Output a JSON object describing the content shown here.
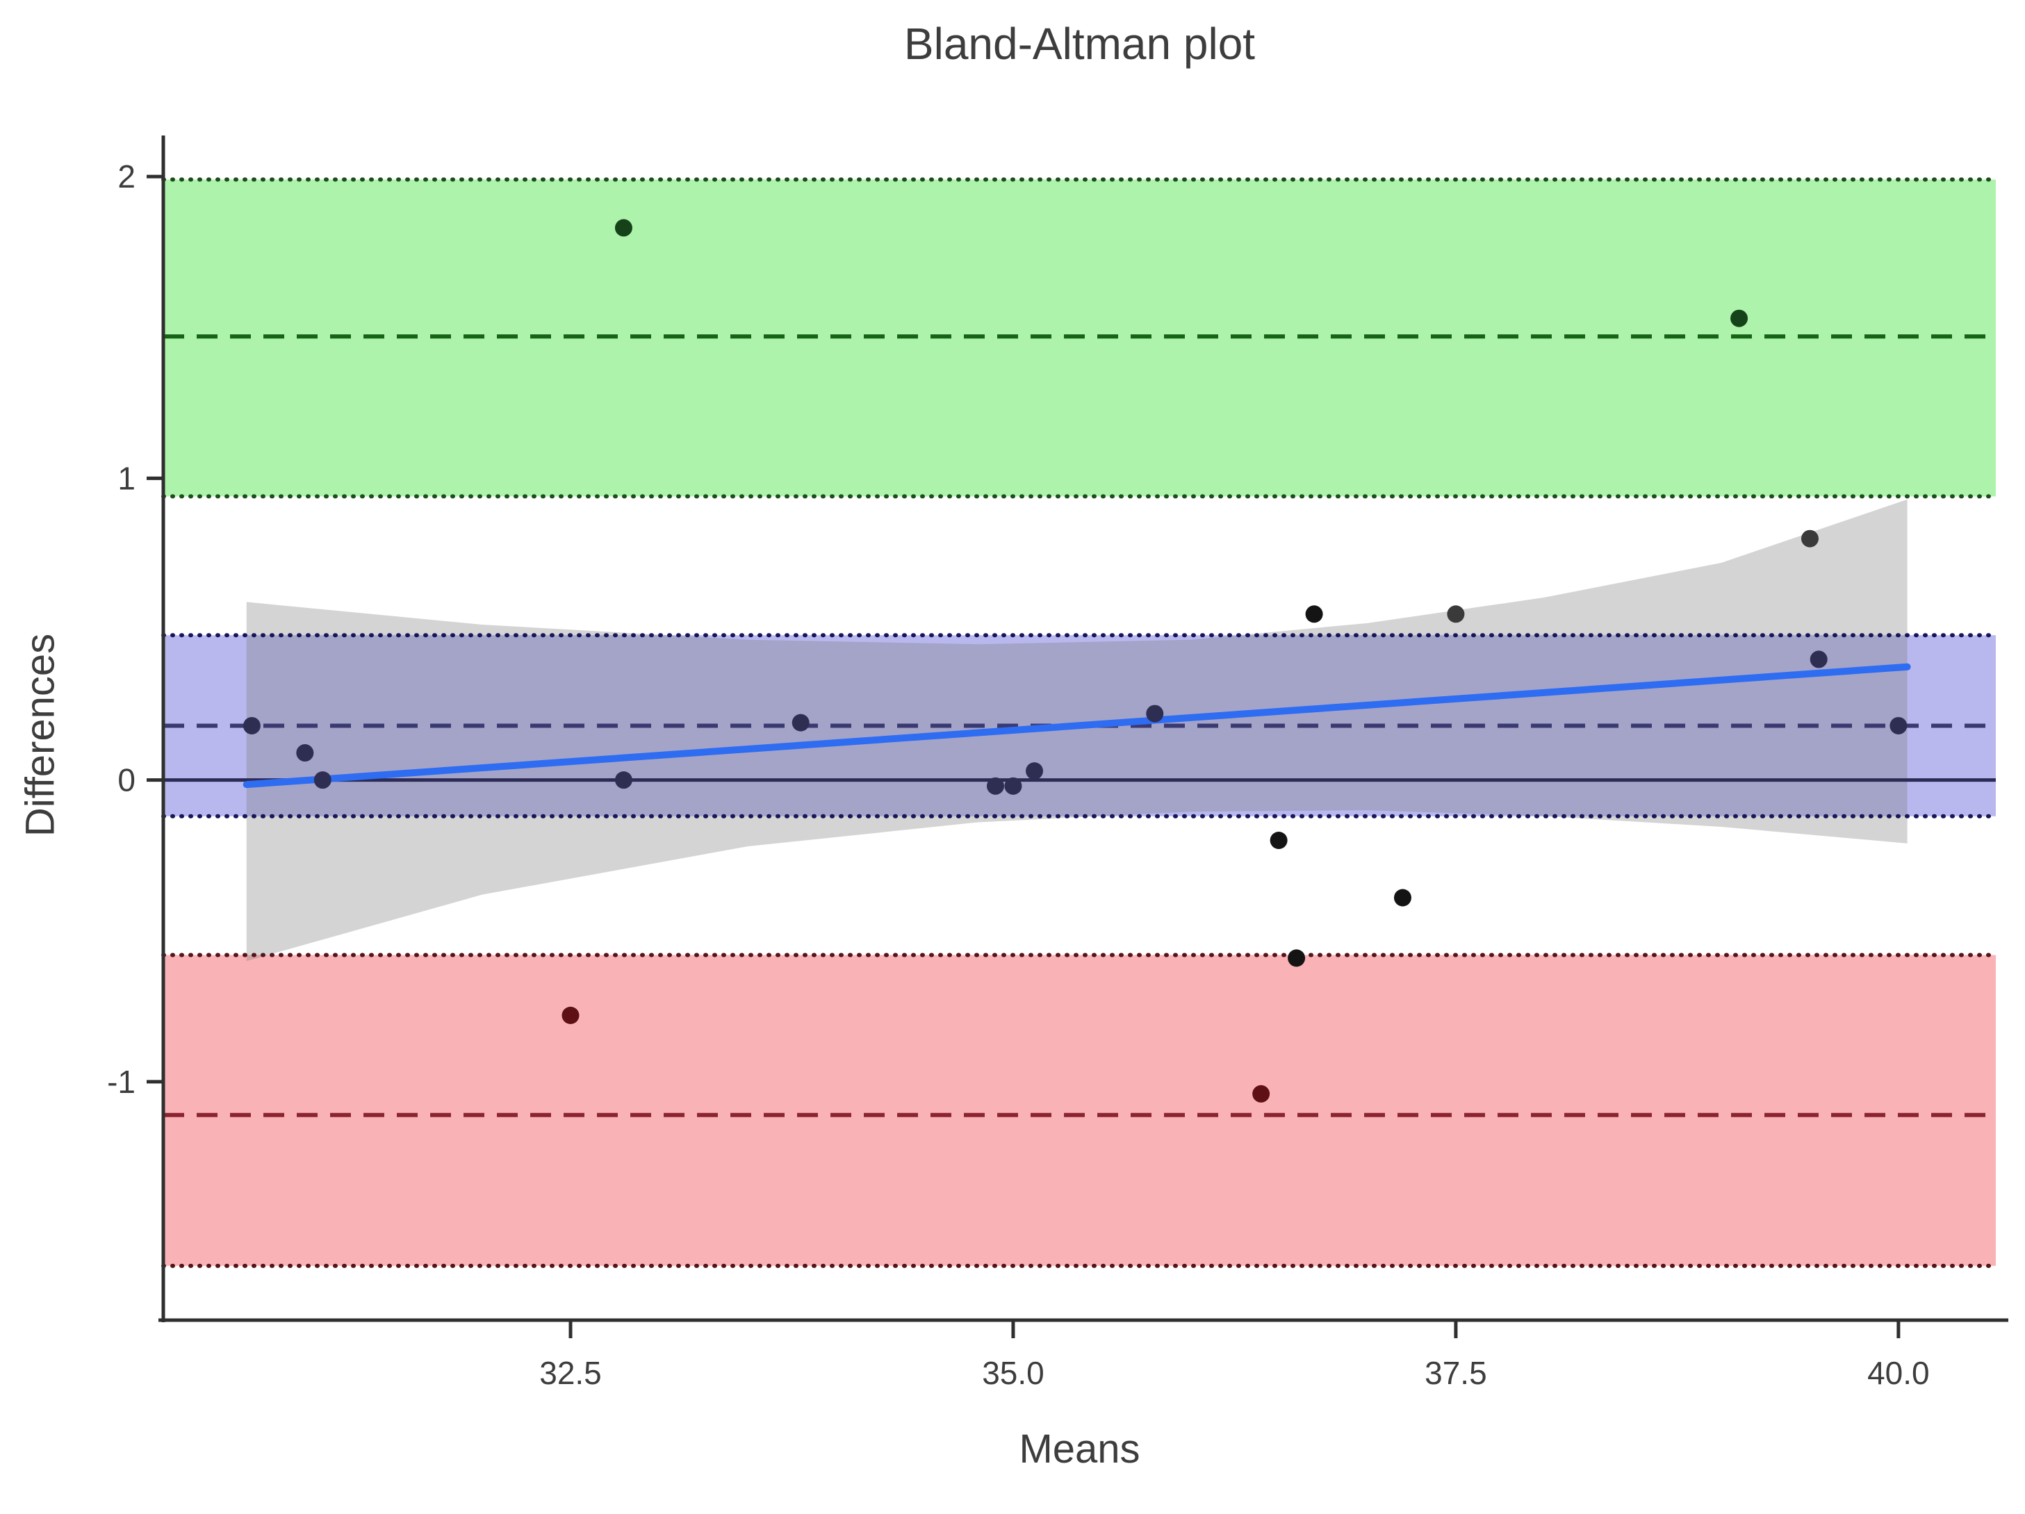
{
  "chart_data": {
    "type": "scatter",
    "subtype": "bland-altman",
    "title": "Bland-Altman plot",
    "xlabel": "Means",
    "ylabel": "Differences",
    "xlim": [
      30.2,
      40.55
    ],
    "ylim": [
      -1.79,
      2.09
    ],
    "x_ticks": [
      32.5,
      35.0,
      37.5,
      40.0
    ],
    "x_tick_labels": [
      "32.5",
      "35.0",
      "37.5",
      "40.0"
    ],
    "y_ticks": [
      2,
      1,
      0,
      -1
    ],
    "y_tick_labels": [
      "2",
      "1",
      "0",
      "-1"
    ],
    "grid": "off",
    "legend": "none",
    "bias": 0.18,
    "bias_ci": [
      -0.12,
      0.48
    ],
    "upper_loa": 1.47,
    "upper_loa_ci": [
      0.94,
      1.99
    ],
    "lower_loa": -1.11,
    "lower_loa_ci": [
      -1.61,
      -0.58
    ],
    "zero_line": 0,
    "bands": [
      {
        "name": "upper-loa-band",
        "from": 0.94,
        "to": 1.99,
        "center": 1.47,
        "fill": "#aef3ab",
        "edge_color": "#1d4d1d",
        "dash_color": "#156315"
      },
      {
        "name": "bias-band",
        "from": -0.12,
        "to": 0.48,
        "center": 0.18,
        "fill": "#b9b8ee",
        "edge_color": "#16165a",
        "dash_color": "#3a3a72"
      },
      {
        "name": "lower-loa-band",
        "from": -1.61,
        "to": -0.58,
        "center": -1.11,
        "fill": "#f9b3b6",
        "edge_color": "#551418",
        "dash_color": "#8c2430"
      }
    ],
    "regression": {
      "x1": 30.67,
      "y1": -0.015,
      "x2": 40.05,
      "y2": 0.375,
      "line_color": "#2e6cf2",
      "ci_fill": "rgba(120,120,120,0.32)",
      "ci_upper": [
        [
          30.67,
          0.59
        ],
        [
          32.0,
          0.515
        ],
        [
          33.5,
          0.465
        ],
        [
          34.8,
          0.45
        ],
        [
          36.0,
          0.465
        ],
        [
          37.0,
          0.52
        ],
        [
          38.0,
          0.605
        ],
        [
          39.0,
          0.72
        ],
        [
          40.05,
          0.93
        ]
      ],
      "ci_lower": [
        [
          30.67,
          -0.6
        ],
        [
          32.0,
          -0.38
        ],
        [
          33.5,
          -0.22
        ],
        [
          34.8,
          -0.14
        ],
        [
          36.0,
          -0.105
        ],
        [
          37.0,
          -0.1
        ],
        [
          38.0,
          -0.12
        ],
        [
          39.0,
          -0.155
        ],
        [
          40.05,
          -0.21
        ]
      ]
    },
    "points": [
      {
        "x": 30.7,
        "y": 0.18,
        "color": "#2e2e52"
      },
      {
        "x": 31.0,
        "y": 0.09,
        "color": "#2e2e52"
      },
      {
        "x": 31.1,
        "y": 0.0,
        "color": "#2e2e52"
      },
      {
        "x": 32.8,
        "y": 0.0,
        "color": "#2e2e52"
      },
      {
        "x": 33.8,
        "y": 0.19,
        "color": "#2e2e52"
      },
      {
        "x": 34.9,
        "y": -0.02,
        "color": "#2e2e52"
      },
      {
        "x": 35.0,
        "y": -0.02,
        "color": "#2e2e52"
      },
      {
        "x": 35.12,
        "y": 0.03,
        "color": "#2e2e52"
      },
      {
        "x": 35.8,
        "y": 0.22,
        "color": "#2e2e52"
      },
      {
        "x": 36.5,
        "y": -0.2,
        "color": "#141414"
      },
      {
        "x": 36.6,
        "y": -0.59,
        "color": "#141414"
      },
      {
        "x": 37.2,
        "y": -0.39,
        "color": "#141414"
      },
      {
        "x": 36.7,
        "y": 0.55,
        "color": "#141414"
      },
      {
        "x": 37.5,
        "y": 0.55,
        "color": "#3a3a3a"
      },
      {
        "x": 39.5,
        "y": 0.8,
        "color": "#3a3a3a"
      },
      {
        "x": 32.5,
        "y": -0.78,
        "color": "#5e1014"
      },
      {
        "x": 36.4,
        "y": -1.04,
        "color": "#5e1014"
      },
      {
        "x": 32.8,
        "y": 1.83,
        "color": "#16421a"
      },
      {
        "x": 39.1,
        "y": 1.53,
        "color": "#16421a"
      },
      {
        "x": 39.55,
        "y": 0.4,
        "color": "#2e2e52"
      },
      {
        "x": 40.0,
        "y": 0.18,
        "color": "#2e2e52"
      }
    ],
    "point_radius": 12.5,
    "colors": {
      "axis": "#2f2f2f",
      "text": "#3d3d3d",
      "zero_line": "#2b2b55",
      "background": "#ffffff"
    }
  }
}
